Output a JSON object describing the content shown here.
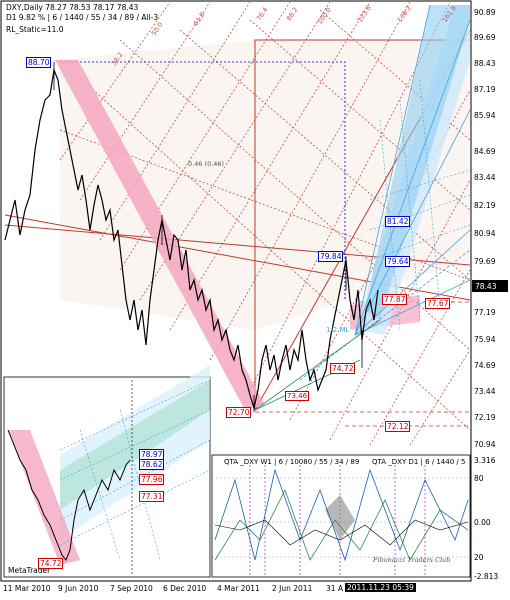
{
  "header": {
    "line1": "DXY,Daily  78.27 78.53 78.17 78.43",
    "line2": "D1  9.82 %  | 6 / 1440 / 55 / 34 / 89 / All-3",
    "line3": "RL_Static=11.0"
  },
  "price_axis": [
    "90.89",
    "89.69",
    "88.43",
    "87.19",
    "85.94",
    "84.69",
    "83.44",
    "82.19",
    "80.94",
    "79.69",
    "78.43",
    "77.19",
    "75.94",
    "74.69",
    "73.44",
    "72.19",
    "70.94"
  ],
  "current_price": "78.43",
  "indicator_axis": [
    "3.316",
    "80",
    "0.00",
    "20",
    "-2.813"
  ],
  "date_axis": [
    "11 Mar 2010",
    "9 Jun 2010",
    "7 Sep 2010",
    "6 Dec 2010",
    "4 Mar 2011",
    "2 Jun 2011",
    "31 A"
  ],
  "date_highlight": "2011.11.23 05:39",
  "level_boxes": {
    "high": "88.70",
    "low": "72.70",
    "b81": "81.42",
    "b7984": "79.84",
    "b7964": "79.64",
    "b7787": "77.87",
    "b7767": "77.67",
    "b7472": "74.72",
    "b7212": "72.12",
    "b7346": "73.46"
  },
  "fan_labels": [
    "38.2",
    "50.0",
    "61.8",
    "76.4",
    "88.2",
    "100.0",
    "123.6",
    "138.2",
    "161.8"
  ],
  "annotations": {
    "center_value": "0.46 (0.46)",
    "ml_label": "1/2 ML"
  },
  "indicator": {
    "title_left": "QTA _DXY W1 | 6 / 10080 / 55 / 34 / 89",
    "title_right": "QTA _DXY D1 | 6 / 1440 / 5",
    "watermark": "Fibonacci Traders Club"
  },
  "inset": {
    "label": "MetaTrader",
    "boxes": [
      "78.97",
      "78.62",
      "77.96",
      "77.31",
      "74.72"
    ]
  },
  "colors": {
    "pink_band": "#f4a6c0",
    "teal_band": "#8fd6c8",
    "blue_fan": "#3fa3e0",
    "red_box": "#cc0000",
    "blue_box": "#0000cc",
    "dotted_red": "#c0504d"
  }
}
